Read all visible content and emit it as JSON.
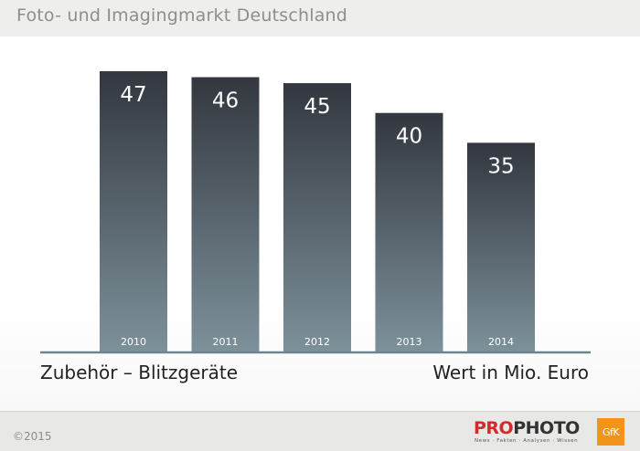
{
  "title": "Foto- und Imagingmarkt Deutschland",
  "footer": {
    "copyright": "©2015",
    "brand_pro": "PRO",
    "brand_photo": "PHOTO",
    "brand_tagline": "News · Fakten · Analysen · Wissen",
    "partner_logo": "GfK"
  },
  "colors": {
    "bar_top": "#33373f",
    "bar_bottom": "#7d919b",
    "axis": "#6e8591",
    "label_text": "#222222",
    "brand_red": "#d42a2c",
    "gfk_orange": "#f29419"
  },
  "chart_data": {
    "type": "bar",
    "categories": [
      "2010",
      "2011",
      "2012",
      "2013",
      "2014"
    ],
    "values": [
      47,
      46,
      45,
      40,
      35
    ],
    "title": "Foto- und Imagingmarkt Deutschland",
    "xlabel": "Zubehör – Blitzgeräte",
    "ylabel": "Wert in Mio. Euro",
    "ylim": [
      0,
      47
    ],
    "grid": false,
    "legend": "none",
    "data_labels": true
  }
}
